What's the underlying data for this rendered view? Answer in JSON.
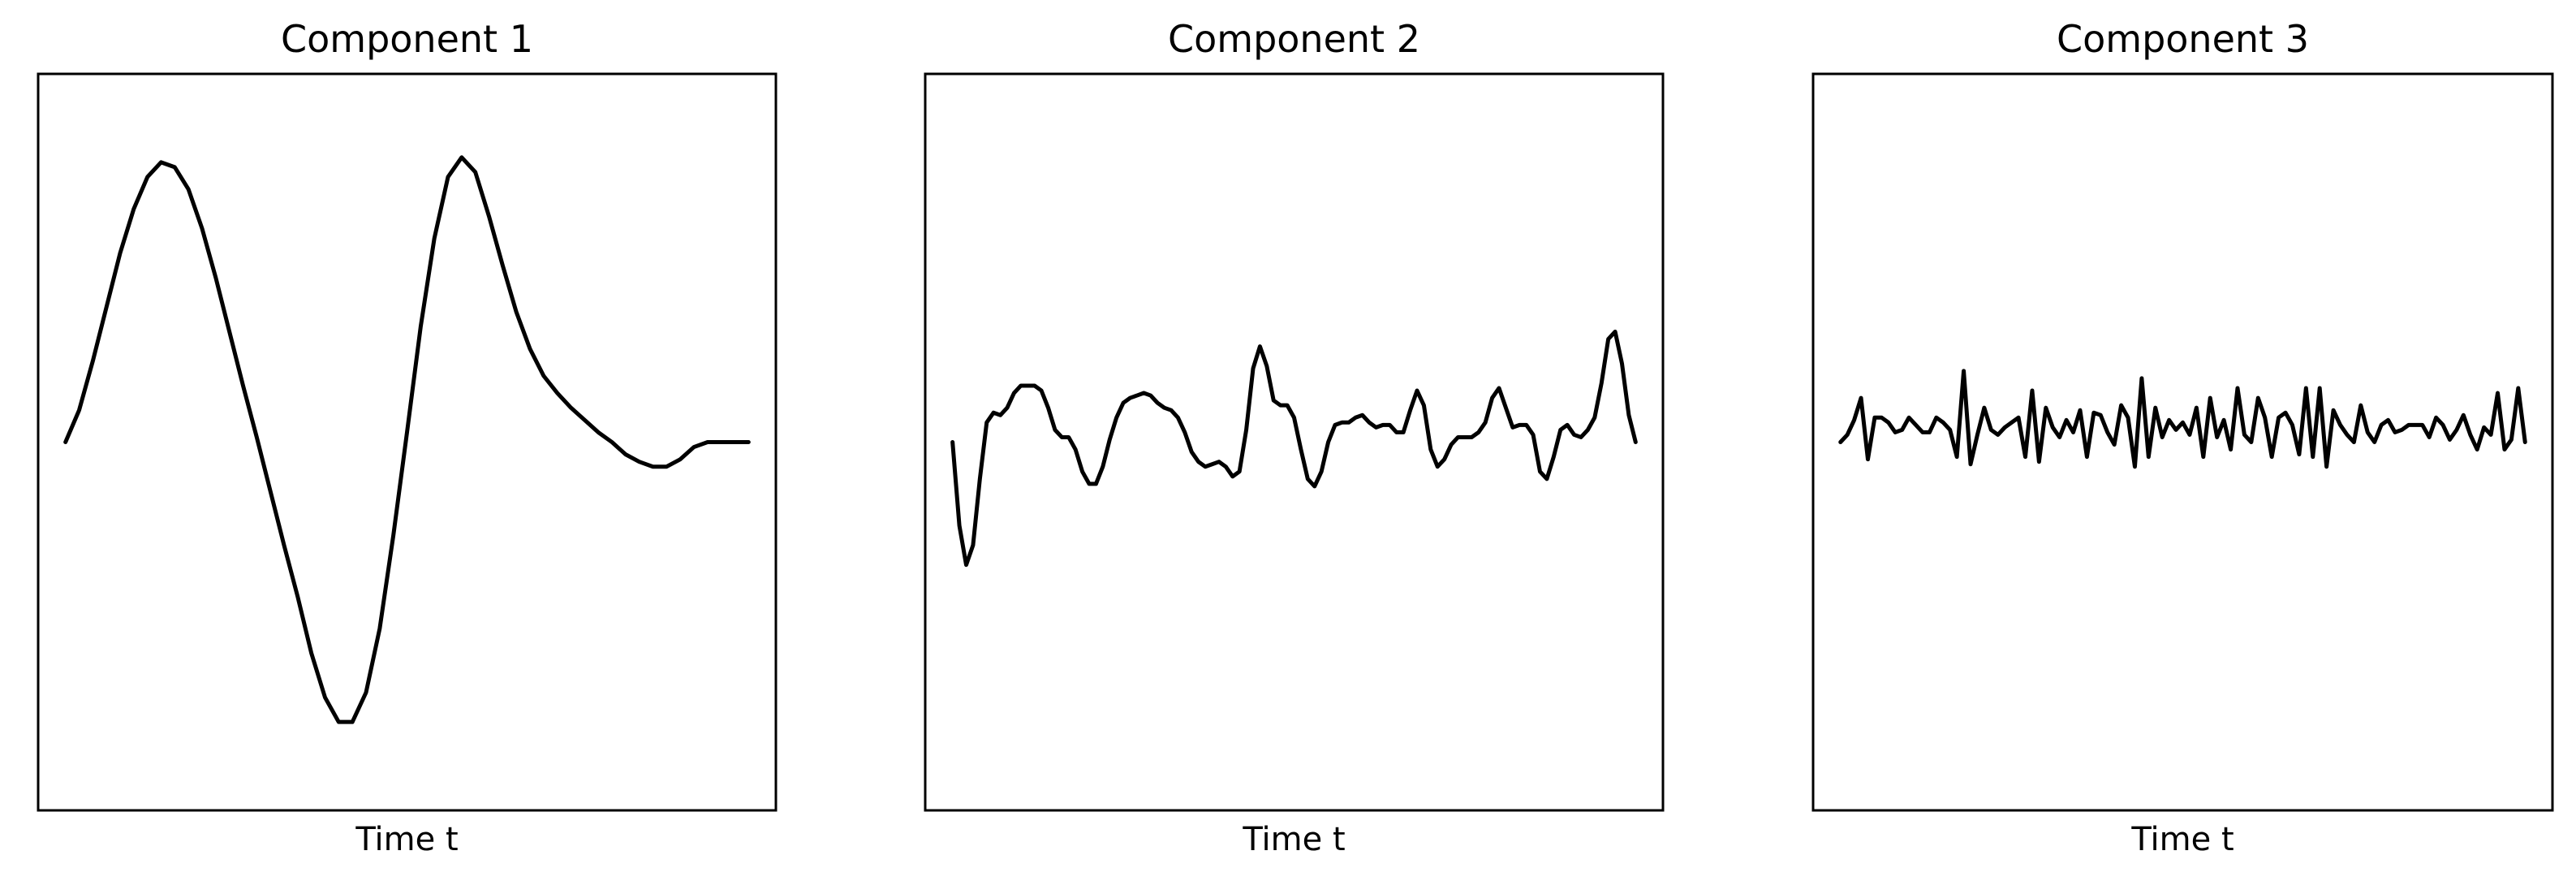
{
  "chart_data": [
    {
      "type": "line",
      "title": "Component 1",
      "xlabel": "Time t",
      "ylabel": "",
      "xticks": [],
      "yticks": [],
      "grid": false,
      "line_color": "#000000",
      "xlim": [
        -4,
        104
      ],
      "ylim": [
        -1.5,
        1.5
      ],
      "series": [
        {
          "x": [
            0,
            2,
            4,
            6,
            8,
            10,
            12,
            14,
            16,
            18,
            20,
            22,
            24,
            26,
            28,
            30,
            32,
            34,
            36,
            38,
            40,
            42,
            44,
            46,
            48,
            50,
            52,
            54,
            56,
            58,
            60,
            62,
            64,
            66,
            68,
            70,
            72,
            74,
            76,
            78,
            80,
            82,
            84,
            86,
            88,
            90,
            92,
            94,
            96,
            98,
            100
          ],
          "y": [
            0,
            0.13,
            0.33,
            0.55,
            0.77,
            0.95,
            1.08,
            1.14,
            1.12,
            1.03,
            0.87,
            0.67,
            0.45,
            0.23,
            0.02,
            -0.2,
            -0.42,
            -0.63,
            -0.86,
            -1.04,
            -1.14,
            -1.14,
            -1.02,
            -0.76,
            -0.38,
            0.04,
            0.47,
            0.83,
            1.08,
            1.16,
            1.1,
            0.92,
            0.72,
            0.53,
            0.38,
            0.27,
            0.2,
            0.14,
            0.09,
            0.04,
            0,
            -0.05,
            -0.08,
            -0.1,
            -0.1,
            -0.07,
            -0.02,
            0,
            0,
            0,
            0
          ]
        }
      ]
    },
    {
      "type": "line",
      "title": "Component 2",
      "xlabel": "Time t",
      "ylabel": "",
      "xticks": [],
      "yticks": [],
      "grid": false,
      "line_color": "#000000",
      "xlim": [
        -4,
        104
      ],
      "ylim": [
        -1.5,
        1.5
      ],
      "series": [
        {
          "x": [
            0,
            1,
            2,
            3,
            4,
            5,
            6,
            7,
            8,
            9,
            10,
            11,
            12,
            13,
            14,
            15,
            16,
            17,
            18,
            19,
            20,
            21,
            22,
            23,
            24,
            25,
            26,
            27,
            28,
            29,
            30,
            31,
            32,
            33,
            34,
            35,
            36,
            37,
            38,
            39,
            40,
            41,
            42,
            43,
            44,
            45,
            46,
            47,
            48,
            49,
            50,
            51,
            52,
            53,
            54,
            55,
            56,
            57,
            58,
            59,
            60,
            61,
            62,
            63,
            64,
            65,
            66,
            67,
            68,
            69,
            70,
            71,
            72,
            73,
            74,
            75,
            76,
            77,
            78,
            79,
            80,
            81,
            82,
            83,
            84,
            85,
            86,
            87,
            88,
            89,
            90,
            91,
            92,
            93,
            94,
            95,
            96,
            97,
            98,
            99,
            100
          ],
          "y": [
            0,
            -0.34,
            -0.5,
            -0.42,
            -0.15,
            0.08,
            0.12,
            0.11,
            0.14,
            0.2,
            0.23,
            0.23,
            0.23,
            0.21,
            0.14,
            0.05,
            0.02,
            0.02,
            -0.03,
            -0.12,
            -0.17,
            -0.17,
            -0.1,
            0.01,
            0.1,
            0.16,
            0.18,
            0.19,
            0.2,
            0.19,
            0.16,
            0.14,
            0.13,
            0.1,
            0.04,
            -0.04,
            -0.08,
            -0.1,
            -0.09,
            -0.08,
            -0.1,
            -0.14,
            -0.12,
            0.05,
            0.3,
            0.39,
            0.31,
            0.17,
            0.15,
            0.15,
            0.1,
            -0.03,
            -0.15,
            -0.18,
            -0.12,
            0,
            0.07,
            0.08,
            0.08,
            0.1,
            0.11,
            0.08,
            0.06,
            0.07,
            0.07,
            0.04,
            0.04,
            0.13,
            0.21,
            0.15,
            -0.03,
            -0.1,
            -0.07,
            -0.01,
            0.02,
            0.02,
            0.02,
            0.04,
            0.08,
            0.18,
            0.22,
            0.14,
            0.06,
            0.07,
            0.07,
            0.03,
            -0.12,
            -0.15,
            -0.06,
            0.05,
            0.07,
            0.03,
            0.02,
            0.05,
            0.1,
            0.24,
            0.42,
            0.45,
            0.32,
            0.11,
            0
          ]
        }
      ]
    },
    {
      "type": "line",
      "title": "Component 3",
      "xlabel": "Time t",
      "ylabel": "",
      "xticks": [],
      "yticks": [],
      "grid": false,
      "line_color": "#000000",
      "xlim": [
        -4,
        104
      ],
      "ylim": [
        -1.5,
        1.5
      ],
      "series": [
        {
          "x": [
            0,
            1,
            2,
            3,
            4,
            5,
            6,
            7,
            8,
            9,
            10,
            11,
            12,
            13,
            14,
            15,
            16,
            17,
            18,
            19,
            20,
            21,
            22,
            23,
            24,
            25,
            26,
            27,
            28,
            29,
            30,
            31,
            32,
            33,
            34,
            35,
            36,
            37,
            38,
            39,
            40,
            41,
            42,
            43,
            44,
            45,
            46,
            47,
            48,
            49,
            50,
            51,
            52,
            53,
            54,
            55,
            56,
            57,
            58,
            59,
            60,
            61,
            62,
            63,
            64,
            65,
            66,
            67,
            68,
            69,
            70,
            71,
            72,
            73,
            74,
            75,
            76,
            77,
            78,
            79,
            80,
            81,
            82,
            83,
            84,
            85,
            86,
            87,
            88,
            89,
            90,
            91,
            92,
            93,
            94,
            95,
            96,
            97,
            98,
            99,
            100
          ],
          "y": [
            0,
            0.03,
            0.09,
            0.18,
            -0.07,
            0.1,
            0.1,
            0.08,
            0.04,
            0.05,
            0.1,
            0.07,
            0.04,
            0.04,
            0.1,
            0.08,
            0.05,
            -0.06,
            0.29,
            -0.09,
            0.03,
            0.14,
            0.05,
            0.03,
            0.06,
            0.08,
            0.1,
            -0.06,
            0.21,
            -0.08,
            0.14,
            0.06,
            0.02,
            0.09,
            0.04,
            0.13,
            -0.06,
            0.12,
            0.11,
            0.04,
            -0.01,
            0.15,
            0.1,
            -0.1,
            0.26,
            -0.06,
            0.14,
            0.02,
            0.09,
            0.05,
            0.08,
            0.03,
            0.14,
            -0.06,
            0.18,
            0.02,
            0.09,
            -0.03,
            0.22,
            0.03,
            0,
            0.18,
            0.1,
            -0.06,
            0.1,
            0.12,
            0.07,
            -0.05,
            0.22,
            -0.06,
            0.22,
            -0.1,
            0.13,
            0.07,
            0.03,
            0,
            0.15,
            0.04,
            0,
            0.07,
            0.09,
            0.04,
            0.05,
            0.07,
            0.07,
            0.07,
            0.02,
            0.1,
            0.07,
            0.01,
            0.05,
            0.11,
            0.03,
            -0.03,
            0.06,
            0.03,
            0.2,
            -0.03,
            0.01,
            0.22,
            0
          ]
        }
      ]
    }
  ]
}
